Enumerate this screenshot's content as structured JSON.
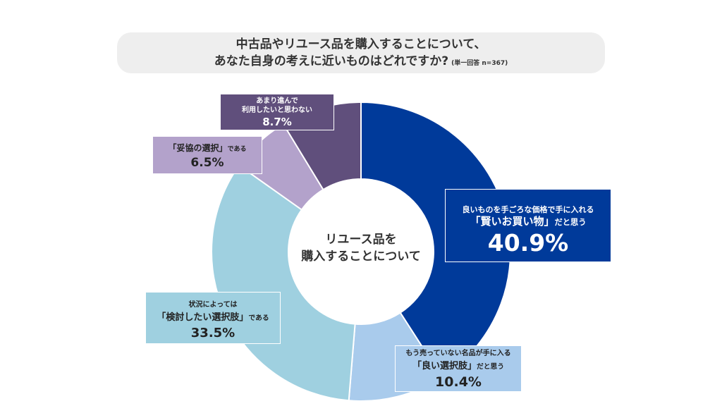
{
  "header": {
    "title_line1": "中古品やリユース品を購入することについて、",
    "title_line2": "あなた自身の考えに近いものはどれですか?",
    "note": "(単一回答 n=367)"
  },
  "center": {
    "line1": "リユース品を",
    "line2": "購入することについて"
  },
  "chart_data": {
    "type": "pie",
    "subtype": "donut",
    "unit": "%",
    "categories": [
      "良いものを手ごろな価格で手に入れる「賢いお買い物」だと思う",
      "もう売っていない名品が手に入る「良い選択肢」だと思う",
      "状況によっては「検討したい選択肢」である",
      "「妥協の選択」である",
      "あまり進んで利用したいと思わない"
    ],
    "values": [
      40.9,
      10.4,
      33.5,
      6.5,
      8.7
    ],
    "colors": [
      "#003a9a",
      "#a9cbec",
      "#9fd0e0",
      "#b3a2cb",
      "#604f7c"
    ],
    "labels": [
      {
        "line1": "良いものを手ごろな価格で手に入れる",
        "line2_main": "「賢いお買い物」",
        "line2_suffix": "だと思う",
        "pct": "40.9%"
      },
      {
        "line1": "もう売っていない名品が手に入る",
        "line2_main": "「良い選択肢」",
        "line2_suffix": "だと思う",
        "pct": "10.4%"
      },
      {
        "line1": "状況によっては",
        "line2_main": "「検討したい選択肢」",
        "line2_suffix": "である",
        "pct": "33.5%"
      },
      {
        "line1_main": "「妥協の選択」",
        "line1_suffix": "である",
        "pct": "6.5%"
      },
      {
        "line1": "あまり進んで",
        "line2": "利用したいと思わない",
        "pct": "8.7%"
      }
    ]
  }
}
